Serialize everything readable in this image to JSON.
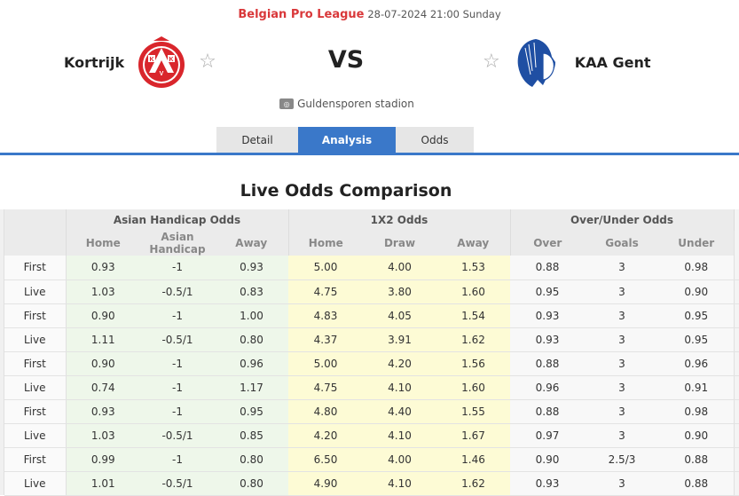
{
  "header": {
    "league": "Belgian Pro League",
    "datetime": "28-07-2024 21:00 Sunday",
    "vs": "VS",
    "stadium": "Guldensporen stadion",
    "colors": {
      "league": "#d9383a",
      "accent": "#3a78c9"
    }
  },
  "home_team": {
    "name": "Kortrijk",
    "logo": "kortrijk-crest",
    "favorite_icon": "star-outline-icon"
  },
  "away_team": {
    "name": "KAA Gent",
    "logo": "gent-crest",
    "favorite_icon": "star-outline-icon"
  },
  "tabs": [
    {
      "label": "Detail",
      "active": false
    },
    {
      "label": "Analysis",
      "active": true
    },
    {
      "label": "Odds",
      "active": false
    }
  ],
  "odds": {
    "title": "Live Odds Comparison",
    "groups": [
      "Asian Handicap Odds",
      "1X2 Odds",
      "Over/Under Odds"
    ],
    "columns": [
      "Home",
      "Asian Handicap",
      "Away",
      "Home",
      "Draw",
      "Away",
      "Over",
      "Goals",
      "Under"
    ],
    "rows": [
      {
        "type": "First",
        "cells": [
          "0.93",
          "-1",
          "0.93",
          "5.00",
          "4.00",
          "1.53",
          "0.88",
          "3",
          "0.98"
        ]
      },
      {
        "type": "Live",
        "cells": [
          "1.03",
          "-0.5/1",
          "0.83",
          "4.75",
          "3.80",
          "1.60",
          "0.95",
          "3",
          "0.90"
        ]
      },
      {
        "type": "First",
        "cells": [
          "0.90",
          "-1",
          "1.00",
          "4.83",
          "4.05",
          "1.54",
          "0.93",
          "3",
          "0.95"
        ]
      },
      {
        "type": "Live",
        "cells": [
          "1.11",
          "-0.5/1",
          "0.80",
          "4.37",
          "3.91",
          "1.62",
          "0.93",
          "3",
          "0.95"
        ]
      },
      {
        "type": "First",
        "cells": [
          "0.90",
          "-1",
          "0.96",
          "5.00",
          "4.20",
          "1.56",
          "0.88",
          "3",
          "0.96"
        ]
      },
      {
        "type": "Live",
        "cells": [
          "0.74",
          "-1",
          "1.17",
          "4.75",
          "4.10",
          "1.60",
          "0.96",
          "3",
          "0.91"
        ]
      },
      {
        "type": "First",
        "cells": [
          "0.93",
          "-1",
          "0.95",
          "4.80",
          "4.40",
          "1.55",
          "0.88",
          "3",
          "0.98"
        ]
      },
      {
        "type": "Live",
        "cells": [
          "1.03",
          "-0.5/1",
          "0.85",
          "4.20",
          "4.10",
          "1.67",
          "0.97",
          "3",
          "0.90"
        ]
      },
      {
        "type": "First",
        "cells": [
          "0.99",
          "-1",
          "0.80",
          "6.50",
          "4.00",
          "1.46",
          "0.90",
          "2.5/3",
          "0.88"
        ]
      },
      {
        "type": "Live",
        "cells": [
          "1.01",
          "-0.5/1",
          "0.80",
          "4.90",
          "4.10",
          "1.62",
          "0.93",
          "3",
          "0.88"
        ]
      }
    ]
  }
}
